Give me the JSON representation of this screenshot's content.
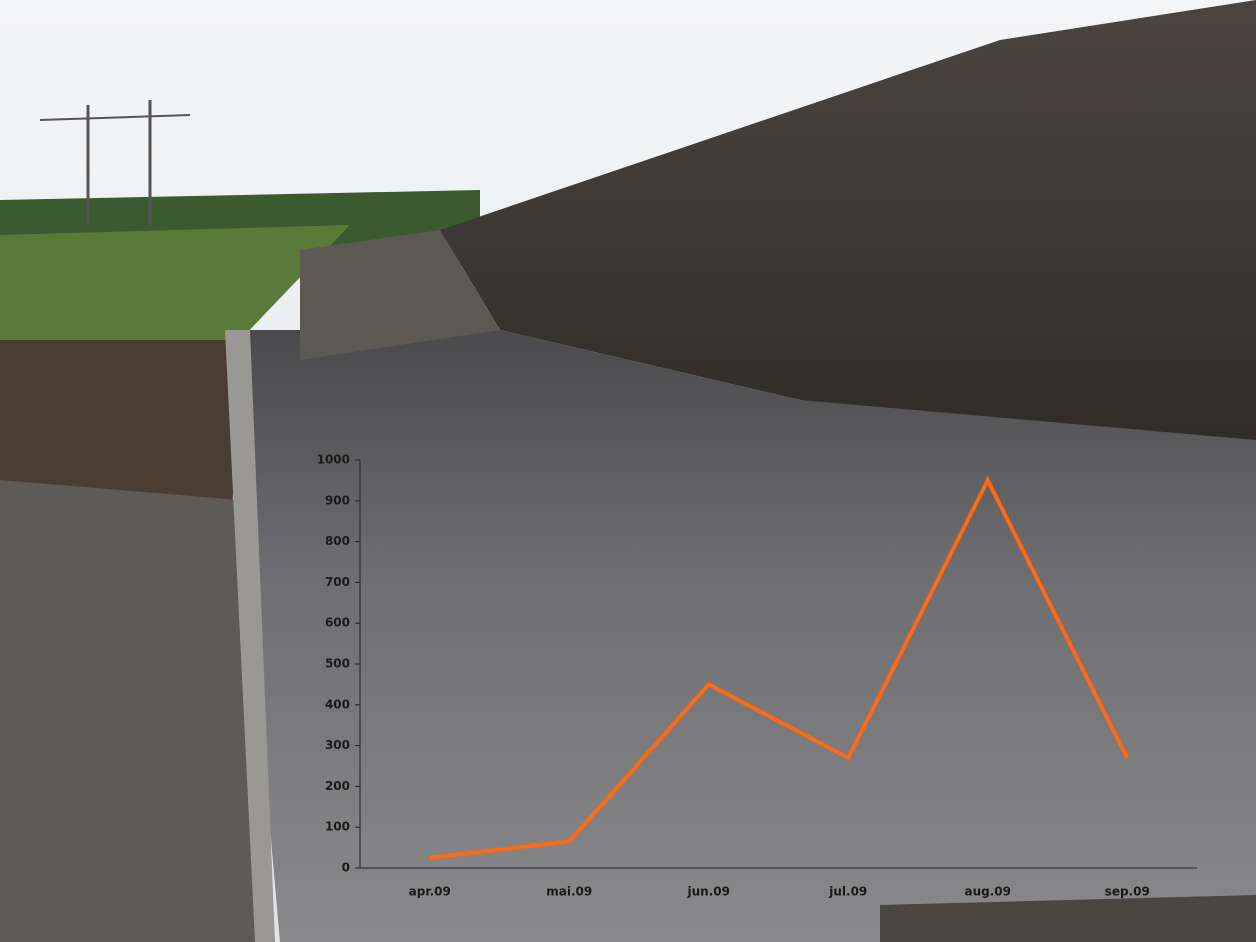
{
  "chart_data": {
    "type": "line",
    "categories": [
      "apr.09",
      "mai.09",
      "jun.09",
      "jul.09",
      "aug.09",
      "sep.09"
    ],
    "values": [
      25,
      65,
      450,
      270,
      950,
      270
    ],
    "color": "#ff6a12",
    "ylim": [
      0,
      1000
    ],
    "yticks": [
      0,
      100,
      200,
      300,
      400,
      500,
      600,
      700,
      800,
      900,
      1000
    ]
  }
}
